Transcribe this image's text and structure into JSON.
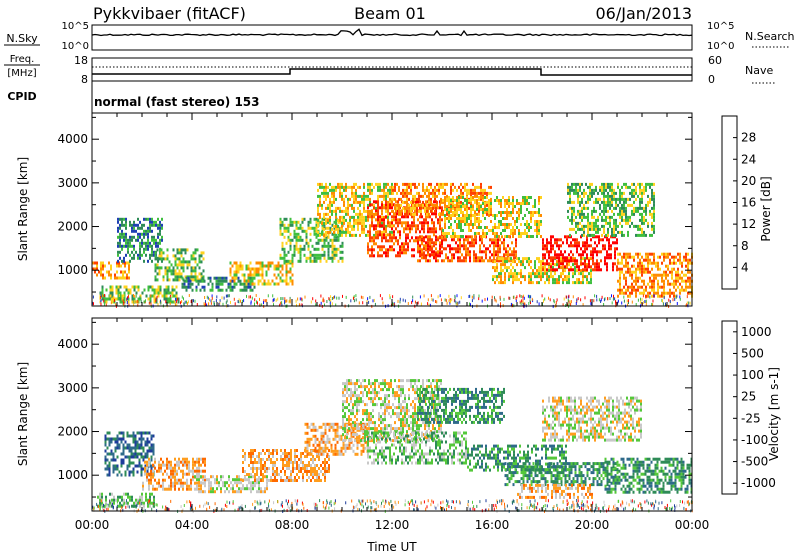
{
  "header": {
    "station": "Pykkvibaer (fitACF)",
    "beam": "Beam 01",
    "date": "06/Jan/2013"
  },
  "status_panel": {
    "nsky_label": "N.Sky",
    "nsky_ticks": [
      "10^5",
      "10^0"
    ],
    "nsearch_label": "N.Search",
    "nsearch_ticks": [
      "10^5",
      "10^0"
    ],
    "freq_label": "Freq.",
    "freq_unit": "[MHz]",
    "freq_ticks": [
      "18",
      "8"
    ],
    "nave_label": "Nave",
    "nave_ticks": [
      "60",
      "0"
    ],
    "cpid_label": "CPID",
    "cpid_text": "normal (fast stereo) 153"
  },
  "chart_data": [
    {
      "type": "heatmap",
      "title": "",
      "ylabel": "Slant Range [km]",
      "xlabel": "",
      "ylim": [
        180,
        4600
      ],
      "yticks": [
        1000,
        2000,
        3000,
        4000
      ],
      "xlim": [
        0,
        24
      ],
      "xticks": [
        "00:00",
        "04:00",
        "08:00",
        "12:00",
        "16:00",
        "20:00",
        "00:00"
      ],
      "colorbar": {
        "label": "Power [dB]",
        "ticks": [
          "4",
          "8",
          "12",
          "16",
          "20",
          "24",
          "28"
        ],
        "colors": [
          "#0a14ff",
          "#1e3fb4",
          "#2e8b57",
          "#3fbf3f",
          "#ffd21e",
          "#ff8c00",
          "#ff4000",
          "#ff0000"
        ]
      },
      "regions": [
        {
          "t0": 0.0,
          "t1": 1.5,
          "r0": 800,
          "r1": 1200,
          "level": 5
        },
        {
          "t0": 0.3,
          "t1": 3.5,
          "r0": 300,
          "r1": 650,
          "level": 3
        },
        {
          "t0": 1.0,
          "t1": 2.8,
          "r0": 1200,
          "r1": 2200,
          "level": 2
        },
        {
          "t0": 2.5,
          "t1": 4.5,
          "r0": 800,
          "r1": 1500,
          "level": 3
        },
        {
          "t0": 3.5,
          "t1": 6.5,
          "r0": 550,
          "r1": 850,
          "level": 2
        },
        {
          "t0": 5.5,
          "t1": 8.0,
          "r0": 700,
          "r1": 1200,
          "level": 4
        },
        {
          "t0": 7.5,
          "t1": 10.0,
          "r0": 1200,
          "r1": 2200,
          "level": 3
        },
        {
          "t0": 9.0,
          "t1": 12.0,
          "r0": 1800,
          "r1": 3000,
          "level": 4
        },
        {
          "t0": 11.0,
          "t1": 14.0,
          "r0": 1300,
          "r1": 2600,
          "level": 6
        },
        {
          "t0": 12.0,
          "t1": 16.0,
          "r0": 2300,
          "r1": 3000,
          "level": 5
        },
        {
          "t0": 13.0,
          "t1": 17.0,
          "r0": 1200,
          "r1": 1800,
          "level": 6
        },
        {
          "t0": 14.0,
          "t1": 18.0,
          "r0": 1800,
          "r1": 2700,
          "level": 4
        },
        {
          "t0": 16.0,
          "t1": 20.0,
          "r0": 700,
          "r1": 1300,
          "level": 4
        },
        {
          "t0": 18.0,
          "t1": 21.0,
          "r0": 1000,
          "r1": 1800,
          "level": 7
        },
        {
          "t0": 19.0,
          "t1": 22.5,
          "r0": 1800,
          "r1": 3000,
          "level": 3
        },
        {
          "t0": 21.0,
          "t1": 24.0,
          "r0": 400,
          "r1": 1400,
          "level": 5
        }
      ]
    },
    {
      "type": "heatmap",
      "title": "",
      "ylabel": "Slant Range [km]",
      "xlabel": "Time UT",
      "ylim": [
        180,
        4600
      ],
      "yticks": [
        1000,
        2000,
        3000,
        4000
      ],
      "xlim": [
        0,
        24
      ],
      "xticks": [
        "00:00",
        "04:00",
        "08:00",
        "12:00",
        "16:00",
        "20:00",
        "00:00"
      ],
      "colorbar": {
        "label": "Velocity [m s-1]",
        "ticks": [
          "1000",
          "500",
          "100",
          "25",
          "-25",
          "-100",
          "-500",
          "-1000"
        ],
        "colors": [
          "#1e3c9b",
          "#2e6a8a",
          "#2e8b57",
          "#54c83a",
          "#c8c8c8",
          "#ff9d1e",
          "#ff6a00",
          "#ff0000"
        ]
      },
      "regions": [
        {
          "t0": 0.2,
          "t1": 2.5,
          "r0": 300,
          "r1": 600,
          "level": 3
        },
        {
          "t0": 0.5,
          "t1": 2.5,
          "r0": 1000,
          "r1": 2000,
          "level": 1
        },
        {
          "t0": 2.0,
          "t1": 4.5,
          "r0": 700,
          "r1": 1400,
          "level": 5
        },
        {
          "t0": 4.0,
          "t1": 7.0,
          "r0": 600,
          "r1": 1000,
          "level": 4
        },
        {
          "t0": 6.0,
          "t1": 9.5,
          "r0": 900,
          "r1": 1600,
          "level": 5
        },
        {
          "t0": 8.5,
          "t1": 11.0,
          "r0": 1500,
          "r1": 2200,
          "level": 5
        },
        {
          "t0": 10.0,
          "t1": 14.0,
          "r0": 1800,
          "r1": 3200,
          "level": 4
        },
        {
          "t0": 11.0,
          "t1": 15.0,
          "r0": 1300,
          "r1": 2000,
          "level": 3
        },
        {
          "t0": 13.0,
          "t1": 16.5,
          "r0": 2200,
          "r1": 3000,
          "level": 2
        },
        {
          "t0": 15.0,
          "t1": 19.0,
          "r0": 1100,
          "r1": 1700,
          "level": 2
        },
        {
          "t0": 16.5,
          "t1": 21.0,
          "r0": 800,
          "r1": 1300,
          "level": 2
        },
        {
          "t0": 18.0,
          "t1": 22.0,
          "r0": 1800,
          "r1": 2800,
          "level": 4
        },
        {
          "t0": 20.5,
          "t1": 24.0,
          "r0": 600,
          "r1": 1400,
          "level": 2
        },
        {
          "t0": 17.0,
          "t1": 20.0,
          "r0": 500,
          "r1": 800,
          "level": 5
        }
      ]
    }
  ]
}
